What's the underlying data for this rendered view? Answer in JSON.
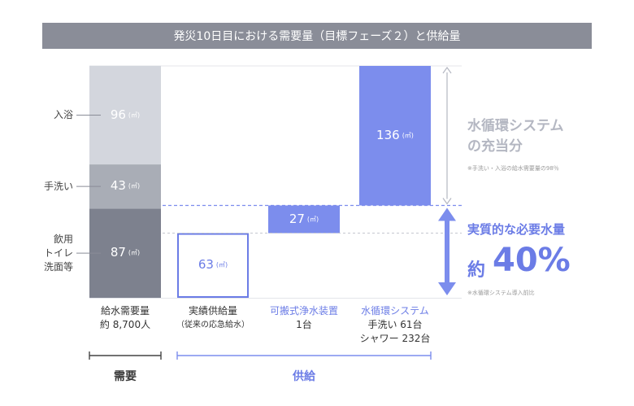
{
  "title": "発災10日目における需要量（目標フェーズ２）と供給量",
  "unit": "(㎥)",
  "chart_data": {
    "type": "bar",
    "subtype": "stacked-waterfall",
    "title": "発災10日目における需要量（目標フェーズ２）と供給量",
    "ylim": [
      0,
      226
    ],
    "bars": [
      {
        "category": "給水需要量",
        "sublabel": [
          "約 8,700人"
        ],
        "color_theme": "gray",
        "segments": [
          {
            "start": 0,
            "value": 87,
            "label": "飲用 トイレ 洗面等",
            "label_lines": [
              "飲用",
              "トイレ",
              "洗面等"
            ],
            "color": "#7d818e"
          },
          {
            "start": 87,
            "value": 43,
            "label": "手洗い",
            "label_lines": [
              "手洗い"
            ],
            "color": "#a9adb6"
          },
          {
            "start": 130,
            "value": 96,
            "label": "入浴",
            "label_lines": [
              "入浴"
            ],
            "color": "#d3d6dd"
          }
        ]
      },
      {
        "category": "実績供給量",
        "sublabel": [
          "（従来の応急給水）"
        ],
        "color_theme": "outline",
        "segments": [
          {
            "start": 0,
            "value": 63,
            "color": "#6b7ce6"
          }
        ]
      },
      {
        "category": "可搬式浄水装置",
        "sublabel": [
          "1台"
        ],
        "color_theme": "blue",
        "segments": [
          {
            "start": 63,
            "value": 27,
            "color": "#7c8ded"
          }
        ]
      },
      {
        "category": "水循環システム",
        "sublabel": [
          "手洗い 61台",
          "シャワー 232台"
        ],
        "color_theme": "blue",
        "segments": [
          {
            "start": 90,
            "value": 136,
            "color": "#7c8ded"
          }
        ]
      }
    ],
    "groups": [
      {
        "label": "需要",
        "bars": [
          0
        ]
      },
      {
        "label": "供給",
        "bars": [
          1,
          2,
          3
        ]
      }
    ],
    "annotations": {
      "gray": {
        "title": [
          "水循環システム",
          "の充当分"
        ],
        "note": "※手洗い・入浴の給水需要量の98％",
        "range": [
          90,
          226
        ]
      },
      "blue": {
        "title": "実質的な必要水量",
        "prefix": "約",
        "value": "40%",
        "note": "※水循環システム導入前比",
        "range": [
          0,
          90
        ]
      }
    }
  }
}
